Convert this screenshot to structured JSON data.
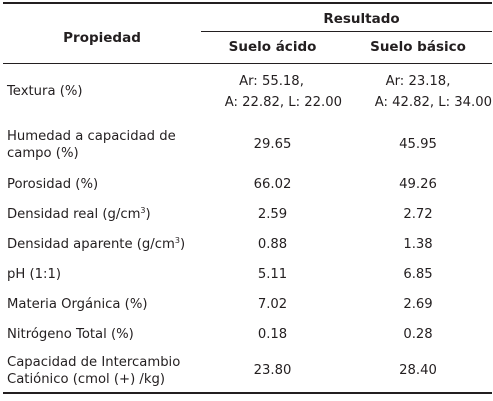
{
  "table": {
    "header": {
      "propiedad": "Propiedad",
      "resultado": "Resultado",
      "suelo_acido": "Suelo ácido",
      "suelo_basico": "Suelo básico"
    },
    "rows": [
      {
        "label": "Textura (%)",
        "acido": [
          "Ar: 55.18,",
          "A: 22.82, L: 22.00"
        ],
        "basico": [
          "Ar: 23.18,",
          "A: 42.82, L: 34.00"
        ]
      },
      {
        "label": [
          "Humedad a capacidad de",
          "campo (%)"
        ],
        "acido": "29.65",
        "basico": "45.95"
      },
      {
        "label": "Porosidad (%)",
        "acido": "66.02",
        "basico": "49.26"
      },
      {
        "label_pre": "Densidad real (g/cm",
        "label_sup": "3",
        "label_post": ")",
        "acido": "2.59",
        "basico": "2.72"
      },
      {
        "label_pre": "Densidad aparente (g/cm",
        "label_sup": "3",
        "label_post": ")",
        "acido": "0.88",
        "basico": "1.38"
      },
      {
        "label": "pH (1:1)",
        "acido": "5.11",
        "basico": "6.85"
      },
      {
        "label": "Materia Orgánica (%)",
        "acido": "7.02",
        "basico": "2.69"
      },
      {
        "label": "Nitrógeno Total (%)",
        "acido": "0.18",
        "basico": "0.28"
      },
      {
        "label": [
          "Capacidad de Intercambio",
          "Catiónico (cmol (+) /kg)"
        ],
        "acido": "23.80",
        "basico": "28.40"
      }
    ]
  }
}
